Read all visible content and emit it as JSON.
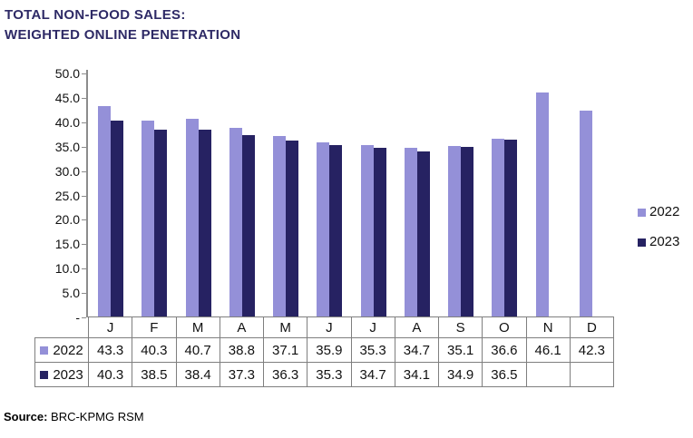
{
  "title": {
    "line1": "TOTAL NON-FOOD SALES:",
    "line2": "WEIGHTED ONLINE PENETRATION"
  },
  "source": {
    "label": "Source:",
    "text": "BRC-KPMG RSM"
  },
  "colors": {
    "series_2022": "#9490D8",
    "series_2023": "#262262",
    "title_text": "#2E2A66",
    "axis_line": "#8C8C8C",
    "table_border": "#7F7F7F"
  },
  "legend": {
    "items": [
      {
        "label": "2022",
        "color": "#9490D8"
      },
      {
        "label": "2023",
        "color": "#262262"
      }
    ]
  },
  "chart_data": {
    "type": "bar",
    "title": "TOTAL NON-FOOD SALES: WEIGHTED ONLINE PENETRATION",
    "categories": [
      "J",
      "F",
      "M",
      "A",
      "M",
      "J",
      "J",
      "A",
      "S",
      "O",
      "N",
      "D"
    ],
    "series": [
      {
        "name": "2022",
        "color": "#9490D8",
        "values": [
          43.3,
          40.3,
          40.7,
          38.8,
          37.1,
          35.9,
          35.3,
          34.7,
          35.1,
          36.6,
          46.1,
          42.3
        ]
      },
      {
        "name": "2023",
        "color": "#262262",
        "values": [
          40.3,
          38.5,
          38.4,
          37.3,
          36.3,
          35.3,
          34.7,
          34.1,
          34.9,
          36.5,
          null,
          null
        ]
      }
    ],
    "xlabel": "",
    "ylabel": "",
    "ylim": [
      0,
      50
    ],
    "ytick_values": [
      0,
      5,
      10,
      15,
      20,
      25,
      30,
      35,
      40,
      45,
      50
    ],
    "ytick_labels": [
      "-",
      "5.0",
      "10.0",
      "15.0",
      "20.0",
      "25.0",
      "30.0",
      "35.0",
      "40.0",
      "45.0",
      "50.0"
    ],
    "grid": false,
    "legend_position": "right",
    "data_table_shown": true
  }
}
